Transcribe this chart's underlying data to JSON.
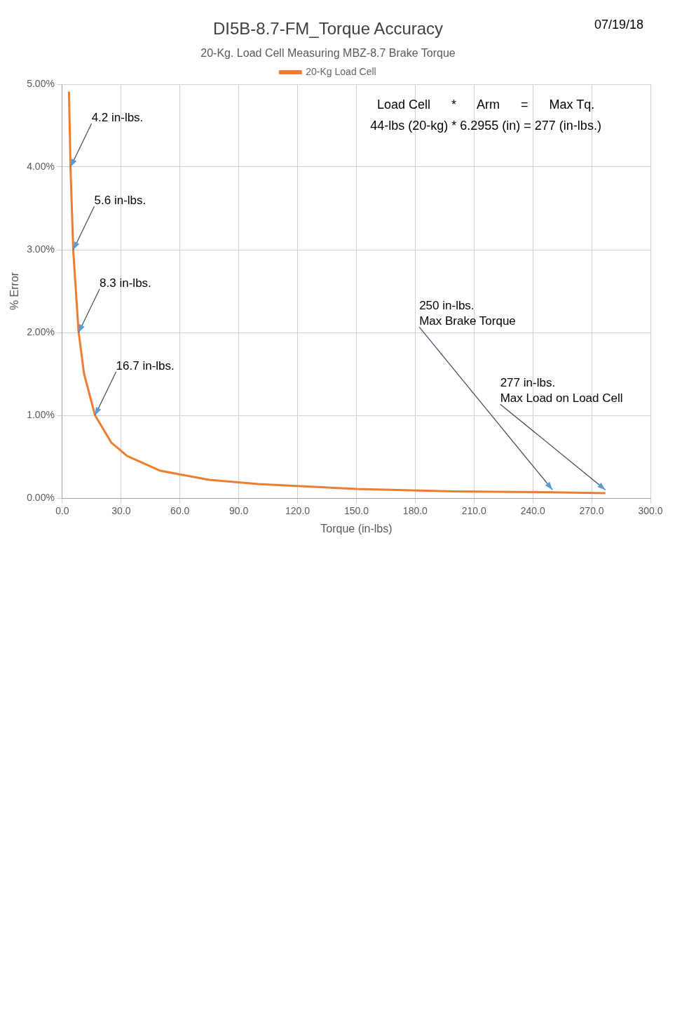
{
  "chart_data": {
    "type": "line",
    "title": "DI5B-8.7-FM_Torque Accuracy",
    "subtitle": "20-Kg. Load Cell Measuring MBZ-8.7 Brake Torque",
    "xlabel": "Torque (in-lbs)",
    "ylabel": "% Error",
    "x": [
      3.4,
      4.2,
      5.6,
      8.3,
      11.1,
      16.7,
      25,
      33,
      50,
      75,
      100,
      150,
      200,
      250,
      277
    ],
    "series": [
      {
        "name": "20-Kg Load Cell",
        "color": "#ed7d31",
        "values": [
          4.91,
          3.98,
          2.98,
          2.01,
          1.5,
          1.0,
          0.67,
          0.51,
          0.33,
          0.22,
          0.17,
          0.11,
          0.08,
          0.07,
          0.06
        ]
      }
    ],
    "xlim": [
      0,
      300
    ],
    "xticks": [
      {
        "value": 0,
        "label": "0.0"
      },
      {
        "value": 30,
        "label": "30.0"
      },
      {
        "value": 60,
        "label": "60.0"
      },
      {
        "value": 90,
        "label": "90.0"
      },
      {
        "value": 120,
        "label": "120.0"
      },
      {
        "value": 150,
        "label": "150.0"
      },
      {
        "value": 180,
        "label": "180.0"
      },
      {
        "value": 210,
        "label": "210.0"
      },
      {
        "value": 240,
        "label": "240.0"
      },
      {
        "value": 270,
        "label": "270.0"
      },
      {
        "value": 300,
        "label": "300.0"
      }
    ],
    "ylim": [
      0,
      5
    ],
    "yticks": [
      {
        "value": 0,
        "label": "0.00%"
      },
      {
        "value": 1,
        "label": "1.00%"
      },
      {
        "value": 2,
        "label": "2.00%"
      },
      {
        "value": 3,
        "label": "3.00%"
      },
      {
        "value": 4,
        "label": "4.00%"
      },
      {
        "value": 5,
        "label": "5.00%"
      }
    ],
    "grid": true,
    "legend": "top",
    "marker": "none",
    "line_style": "solid",
    "annotations": [
      "07/19/18",
      "Load Cell      *      Arm      =      Max Tq.",
      "44-lbs (20-kg) * 6.2955 (in) = 277 (in-lbs.)",
      {
        "text": "4.2 in-lbs.",
        "x": 4.2,
        "y": 4.0
      },
      {
        "text": "5.6 in-lbs.",
        "x": 5.6,
        "y": 3.0
      },
      {
        "text": "8.3 in-lbs.",
        "x": 8.3,
        "y": 2.0
      },
      {
        "text": "16.7 in-lbs.",
        "x": 16.7,
        "y": 1.0
      },
      {
        "text": "277 in-lbs.\nMax Load on Load Cell",
        "x": 277,
        "y": 0.1
      },
      {
        "text": "250 in-lbs.\nMax Brake Torque",
        "x": 250,
        "y": 0.1
      }
    ]
  }
}
